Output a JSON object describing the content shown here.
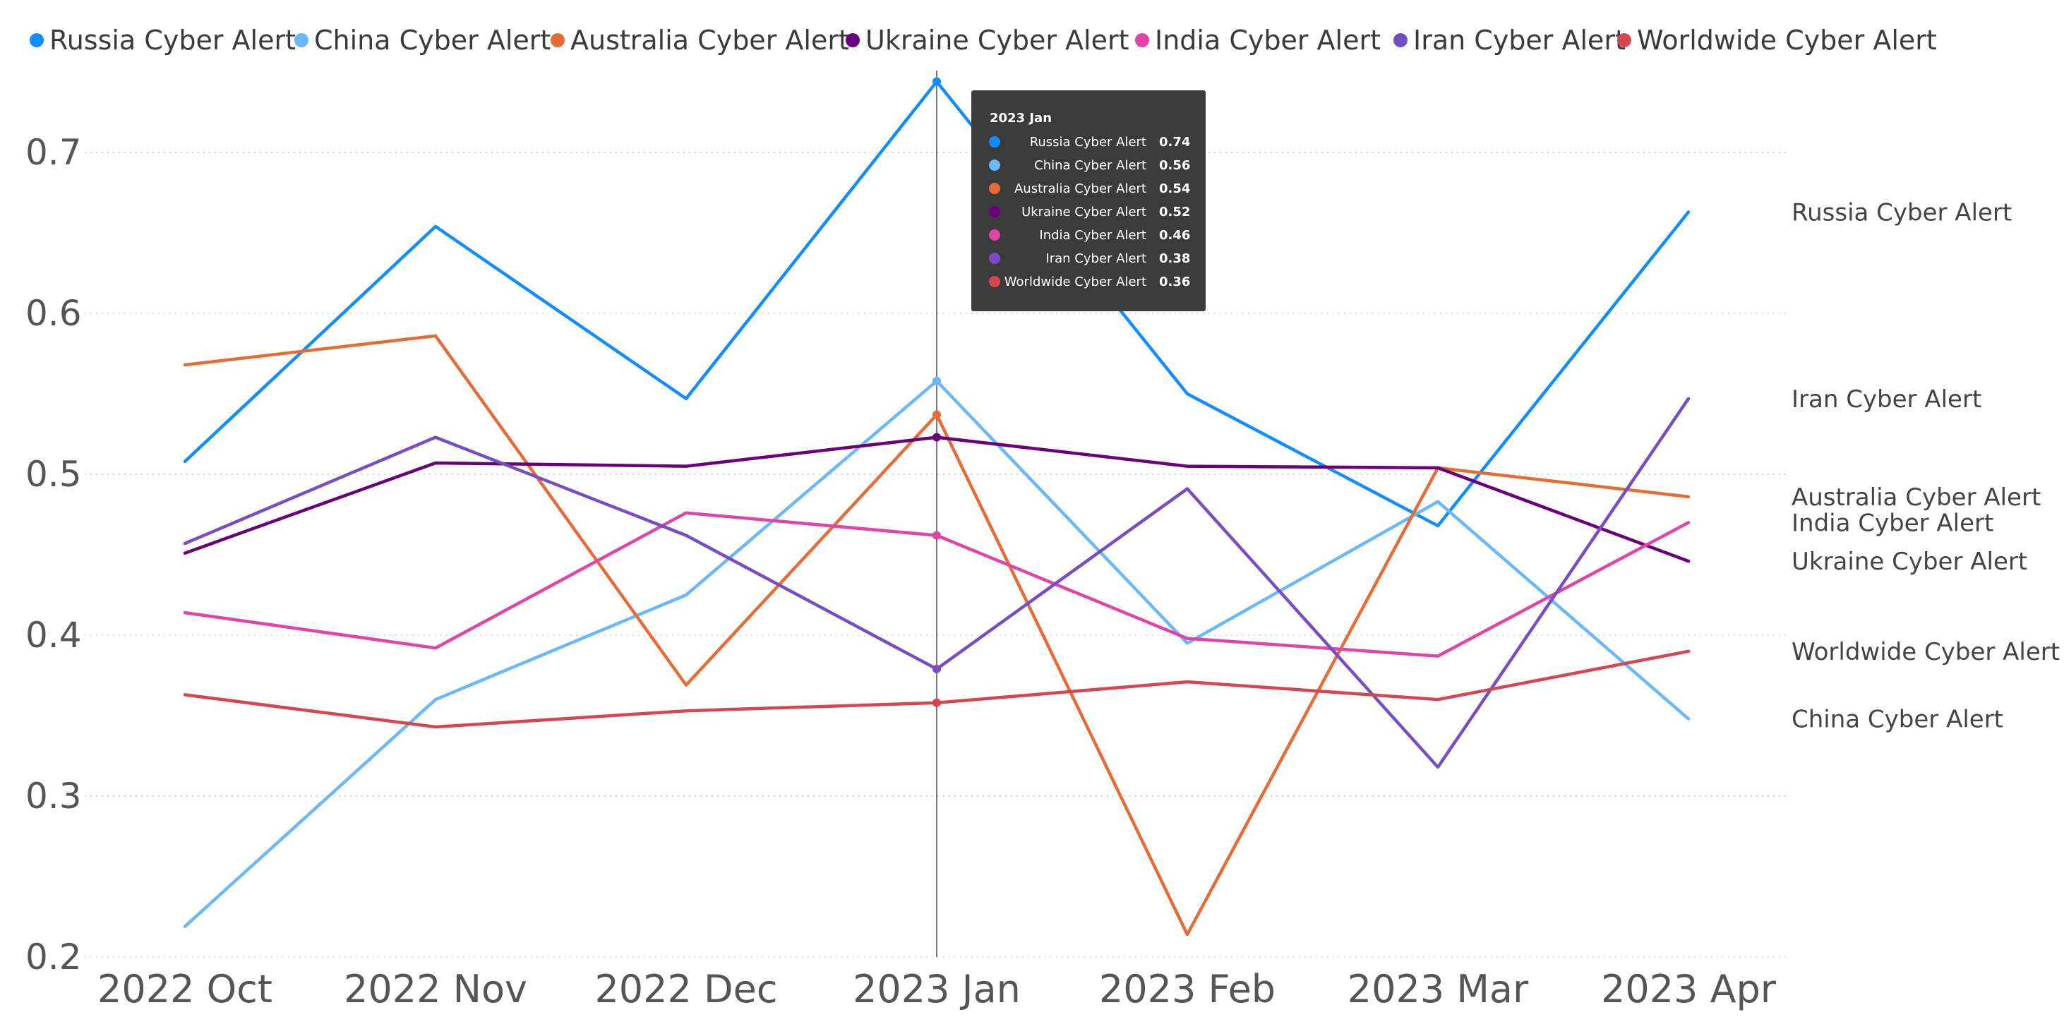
{
  "chart_data": {
    "type": "line",
    "categories": [
      "2022 Oct",
      "2022 Nov",
      "2022 Dec",
      "2023 Jan",
      "2023 Feb",
      "2023 Mar",
      "2023 Apr"
    ],
    "ylim": [
      0.2,
      0.75
    ],
    "yticks": [
      "0.2",
      "0.3",
      "0.4",
      "0.5",
      "0.6",
      "0.7"
    ],
    "grid": true,
    "legend_position": "top-left",
    "series": [
      {
        "name": "Russia Cyber Alert",
        "color": "#118DFF",
        "values": [
          0.508,
          0.654,
          0.547,
          0.744,
          0.55,
          0.468,
          0.663
        ]
      },
      {
        "name": "China Cyber Alert",
        "color": "#6AB8F9",
        "values": [
          0.219,
          0.36,
          0.425,
          0.558,
          0.395,
          0.483,
          0.348
        ]
      },
      {
        "name": "Australia Cyber Alert",
        "color": "#E66C37",
        "values": [
          0.568,
          0.586,
          0.369,
          0.537,
          0.214,
          0.504,
          0.486
        ]
      },
      {
        "name": "Ukraine Cyber Alert",
        "color": "#6B007B",
        "values": [
          0.451,
          0.507,
          0.505,
          0.523,
          0.505,
          0.504,
          0.446
        ]
      },
      {
        "name": "India Cyber Alert",
        "color": "#E044A7",
        "values": [
          0.414,
          0.392,
          0.476,
          0.462,
          0.398,
          0.387,
          0.47
        ]
      },
      {
        "name": "Iran Cyber Alert",
        "color": "#744EC2",
        "values": [
          0.457,
          0.523,
          0.462,
          0.379,
          0.491,
          0.318,
          0.547
        ]
      },
      {
        "name": "Worldwide Cyber Alert",
        "color": "#D64550",
        "values": [
          0.363,
          0.343,
          0.353,
          0.358,
          0.371,
          0.36,
          0.39
        ]
      }
    ],
    "tooltip": {
      "title": "2023 Jan",
      "category_index": 3,
      "rows": [
        {
          "name": "Russia Cyber Alert",
          "value": "0.74"
        },
        {
          "name": "China Cyber Alert",
          "value": "0.56"
        },
        {
          "name": "Australia Cyber Alert",
          "value": "0.54"
        },
        {
          "name": "Ukraine Cyber Alert",
          "value": "0.52"
        },
        {
          "name": "India Cyber Alert",
          "value": "0.46"
        },
        {
          "name": "Iran Cyber Alert",
          "value": "0.38"
        },
        {
          "name": "Worldwide Cyber Alert",
          "value": "0.36"
        }
      ]
    }
  }
}
